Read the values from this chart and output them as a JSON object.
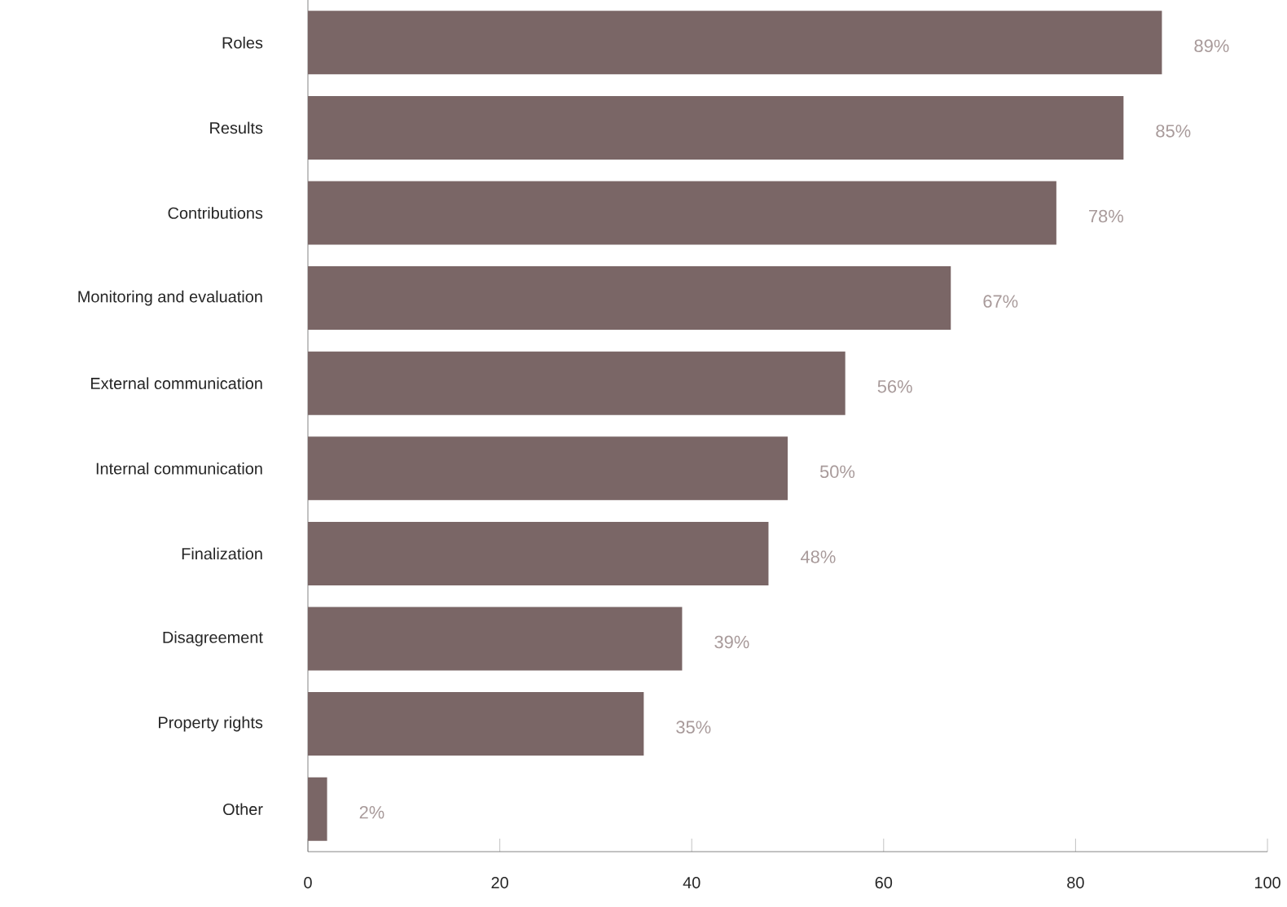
{
  "chart_data": {
    "type": "bar",
    "orientation": "horizontal",
    "categories": [
      "Roles",
      "Results",
      "Contributions",
      "Monitoring and evaluation",
      "External communication",
      "Internal communication",
      "Finalization",
      "Disagreement",
      "Property rights",
      "Other"
    ],
    "values": [
      89,
      85,
      78,
      67,
      56,
      50,
      48,
      39,
      35,
      2
    ],
    "value_labels": [
      "89%",
      "85%",
      "78%",
      "67%",
      "56%",
      "50%",
      "48%",
      "39%",
      "35%",
      "2%"
    ],
    "color": "#7a6666",
    "xlim": [
      0,
      100
    ],
    "xticks": [
      0,
      20,
      40,
      60,
      80,
      100
    ],
    "grid": false
  }
}
